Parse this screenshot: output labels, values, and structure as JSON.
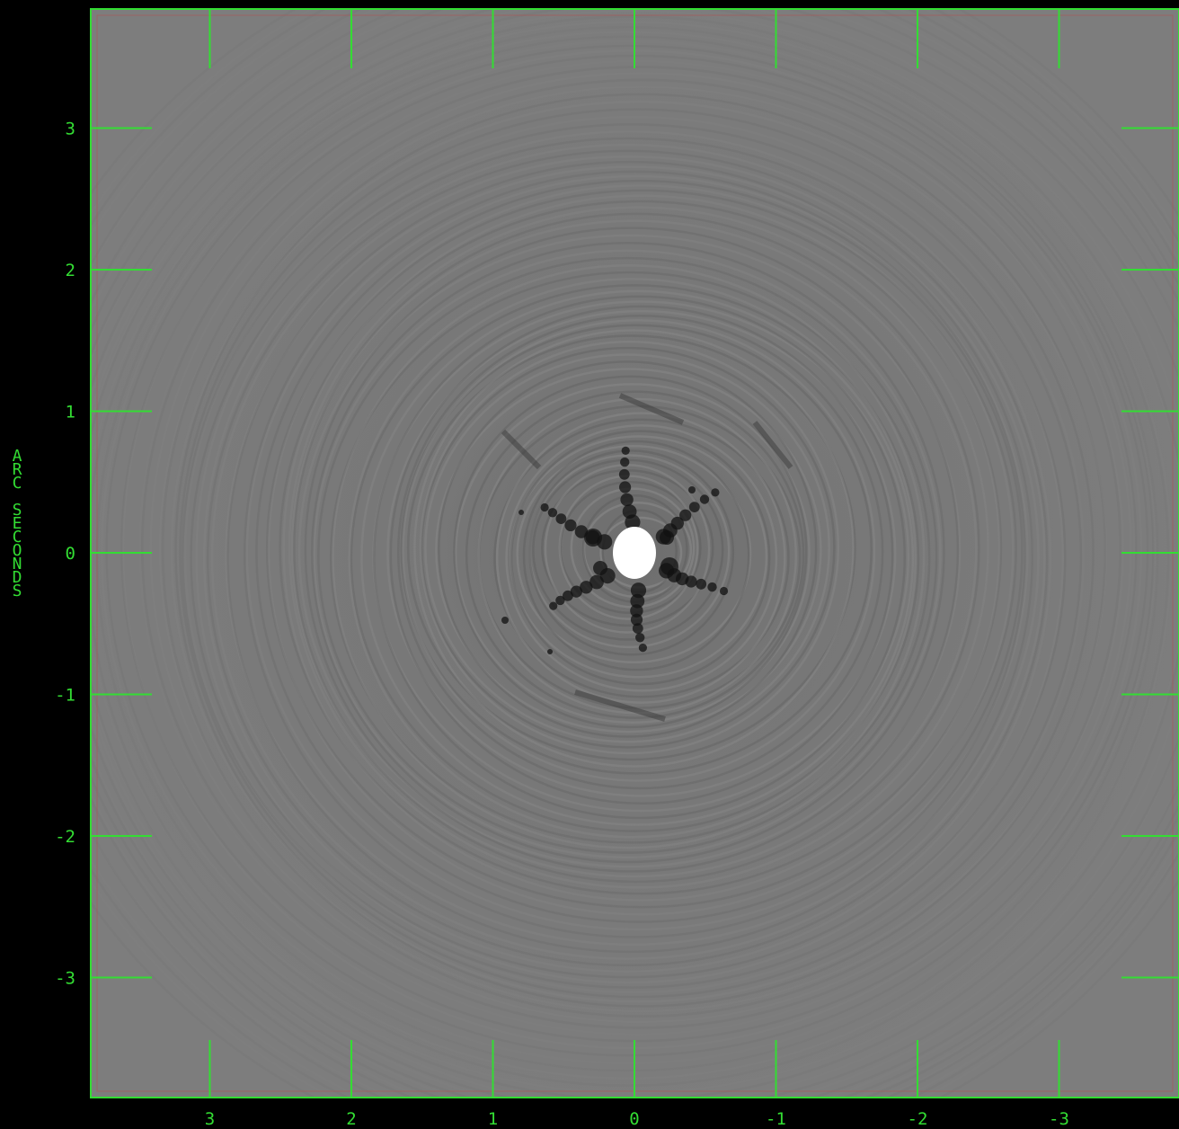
{
  "image": {
    "description_type": "astronomical image",
    "colors": {
      "background": "#000000",
      "frame": "#33dd33",
      "inner_border": "#b05050",
      "field_gray": "#7c7c7c",
      "source": "#ffffff"
    }
  },
  "axes": {
    "ylabel_chars": [
      "A",
      "R",
      "C",
      " ",
      "S",
      "E",
      "C",
      "O",
      "N",
      "D",
      "S"
    ],
    "x_ticks": [
      {
        "value": 3,
        "label": "3"
      },
      {
        "value": 2,
        "label": "2"
      },
      {
        "value": 1,
        "label": "1"
      },
      {
        "value": 0,
        "label": "0"
      },
      {
        "value": -1,
        "label": "-1"
      },
      {
        "value": -2,
        "label": "-2"
      },
      {
        "value": -3,
        "label": "-3"
      }
    ],
    "y_ticks": [
      {
        "value": 3,
        "label": "3"
      },
      {
        "value": 2,
        "label": "2"
      },
      {
        "value": 1,
        "label": "1"
      },
      {
        "value": 0,
        "label": "0"
      },
      {
        "value": -1,
        "label": "-1"
      },
      {
        "value": -2,
        "label": "-2"
      },
      {
        "value": -3,
        "label": "-3"
      }
    ],
    "x_range": [
      3.85,
      -3.85
    ],
    "y_range": [
      -3.85,
      3.85
    ]
  }
}
